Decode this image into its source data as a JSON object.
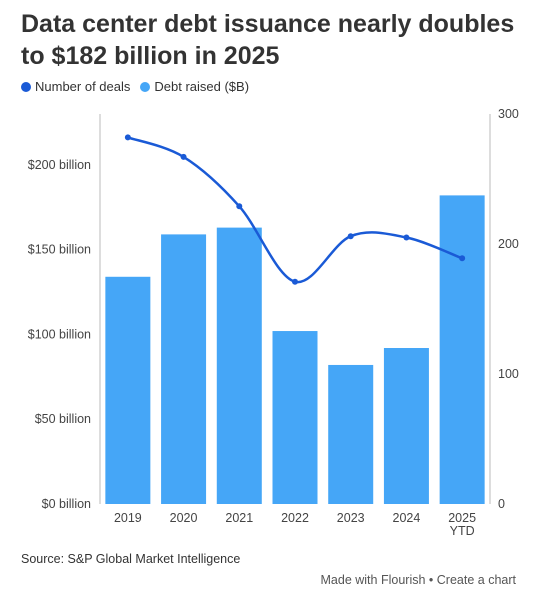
{
  "header": {
    "title": "Data center debt issuance nearly doubles to $182 billion in 2025"
  },
  "legend": [
    {
      "label": "Number of deals",
      "color": "#1a5ad6"
    },
    {
      "label": "Debt raised ($B)",
      "color": "#45a6f7"
    }
  ],
  "chart_data": {
    "type": "bar",
    "categories": [
      "2019",
      "2020",
      "2021",
      "2022",
      "2023",
      "2024",
      "2025"
    ],
    "category_sublabels": [
      "",
      "",
      "",
      "",
      "",
      "",
      "YTD"
    ],
    "series": [
      {
        "name": "Debt raised ($B)",
        "type": "bar",
        "axis": "left",
        "values": [
          134,
          159,
          163,
          102,
          82,
          92,
          182
        ],
        "color": "#45a6f7"
      },
      {
        "name": "Number of deals",
        "type": "line",
        "axis": "right",
        "values": [
          282,
          267,
          229,
          171,
          206,
          205,
          189
        ],
        "color": "#1a5ad6"
      }
    ],
    "left_axis": {
      "ylim": [
        0,
        230
      ],
      "ticks": [
        0,
        50,
        100,
        150,
        200
      ],
      "tick_labels": [
        "$0 billion",
        "$50 billion",
        "$100 billion",
        "$150 billion",
        "$200 billion"
      ]
    },
    "right_axis": {
      "ylim": [
        0,
        300
      ],
      "ticks": [
        0,
        100,
        200,
        300
      ],
      "tick_labels": [
        "0",
        "100",
        "200",
        "300"
      ]
    },
    "grid": false,
    "legend_position": "top-left"
  },
  "source": "Source: S&P Global Market Intelligence",
  "footer": {
    "made_with": "Made with Flourish",
    "separator": "•",
    "create": "Create a chart"
  }
}
